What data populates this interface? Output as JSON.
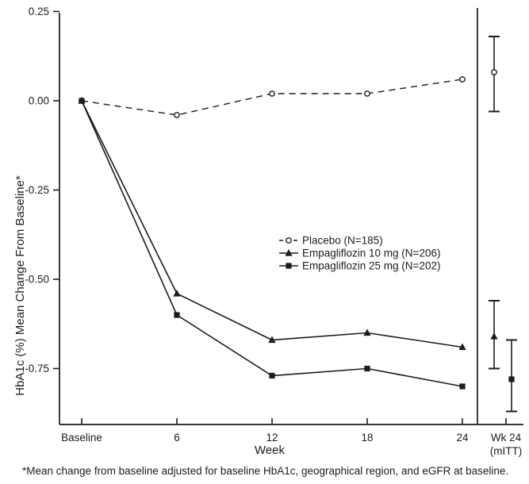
{
  "colors": {
    "ink": "#1c1c1c",
    "background": "#ffffff"
  },
  "chart_data": {
    "type": "line",
    "title": "",
    "xlabel": "Week",
    "ylabel": "HbA1c (%) Mean Change From Baseline*",
    "x_tick_labels": [
      "Baseline",
      "6",
      "12",
      "18",
      "24"
    ],
    "x_weeks": [
      0,
      6,
      12,
      18,
      24
    ],
    "y_tick_labels": [
      "0.25",
      "0.00",
      "-0.25",
      "-0.50",
      "-0.75"
    ],
    "y_tick_values": [
      0.25,
      0,
      -0.25,
      -0.5,
      -0.75
    ],
    "ylim": [
      -0.91,
      0.25
    ],
    "grid": false,
    "legend_position": "center-right",
    "mitt_column": {
      "label_line1": "Wk 24",
      "label_line2": "(mITT)"
    },
    "series": [
      {
        "name": "Placebo (N=185)",
        "marker": "circle",
        "line_style": "dashed",
        "values": [
          0,
          -0.04,
          0.02,
          0.02,
          0.06
        ],
        "wk24_mitt": {
          "mean": 0.08,
          "ci_high": 0.18,
          "ci_low": -0.03
        }
      },
      {
        "name": "Empagliflozin 10 mg (N=206)",
        "marker": "triangle",
        "line_style": "solid",
        "values": [
          0,
          -0.54,
          -0.67,
          -0.65,
          -0.69
        ],
        "wk24_mitt": {
          "mean": -0.66,
          "ci_high": -0.56,
          "ci_low": -0.75
        }
      },
      {
        "name": "Empagliflozin 25 mg (N=202)",
        "marker": "square",
        "line_style": "solid",
        "values": [
          0,
          -0.6,
          -0.77,
          -0.75,
          -0.8
        ],
        "wk24_mitt": {
          "mean": -0.78,
          "ci_high": -0.67,
          "ci_low": -0.87
        }
      }
    ],
    "footnote": "*Mean change from baseline adjusted for baseline HbA1c, geographical region, and eGFR at baseline."
  }
}
